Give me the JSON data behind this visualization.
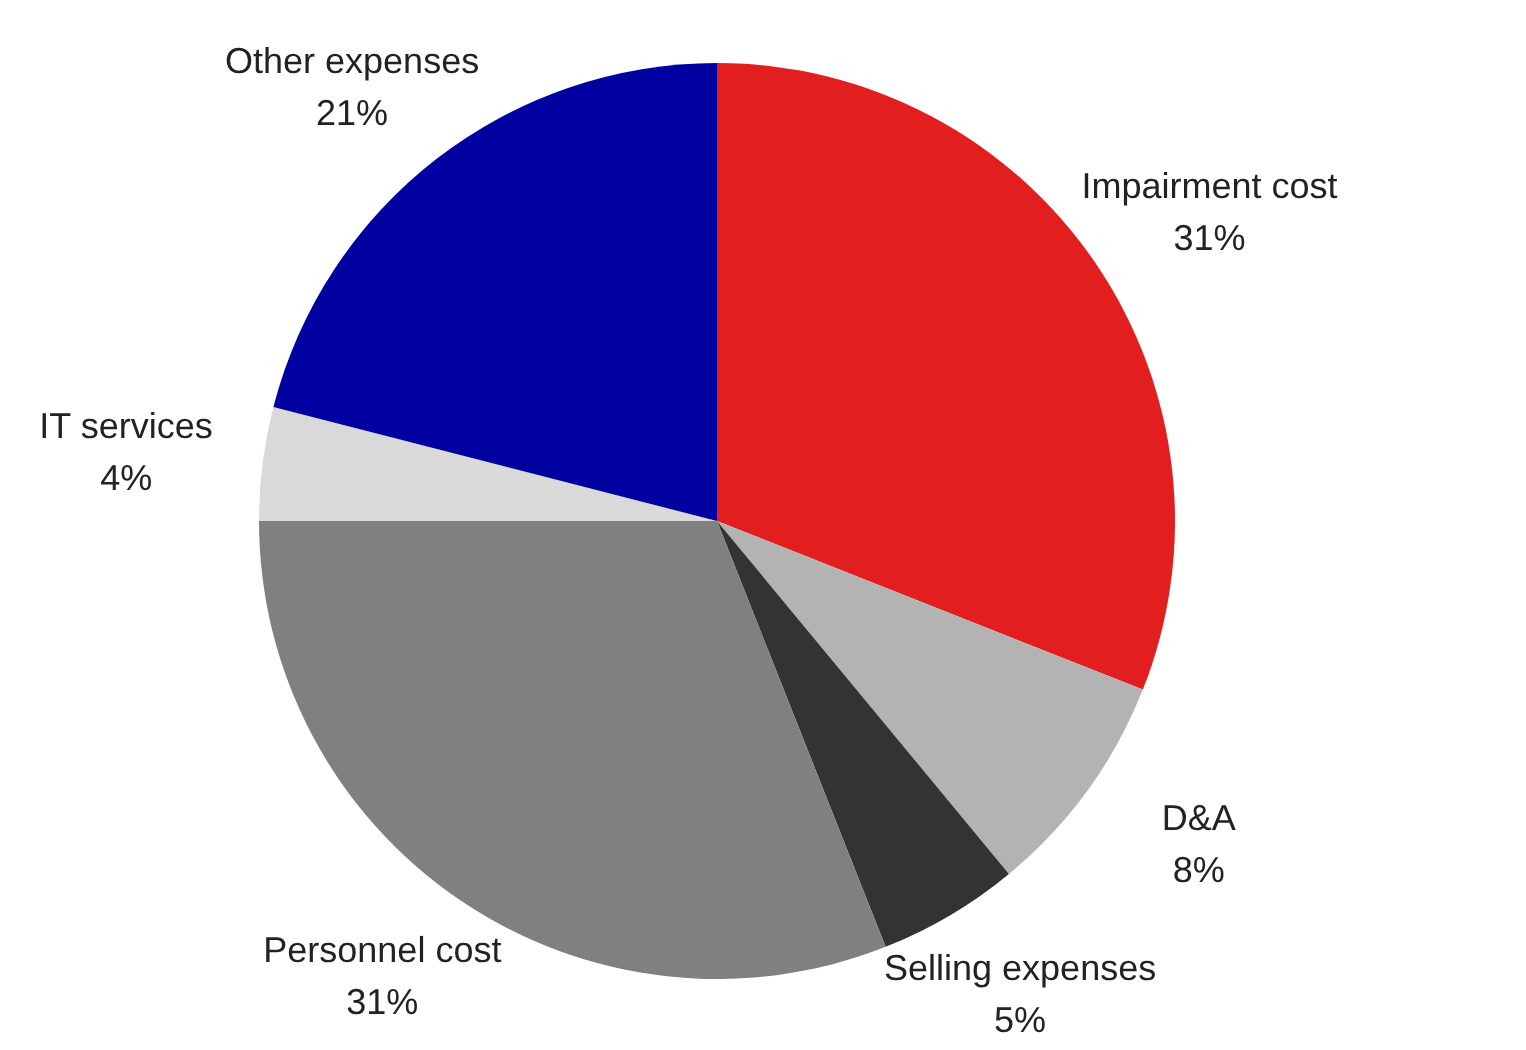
{
  "chart_data": {
    "type": "pie",
    "categories": [
      "Impairment cost",
      "D&A",
      "Selling expenses",
      "Personnel cost",
      "IT services",
      "Other expenses"
    ],
    "values": [
      31,
      8,
      5,
      31,
      4,
      21
    ],
    "value_labels": [
      "31%",
      "8%",
      "5%",
      "31%",
      "4%",
      "21%"
    ],
    "colors": [
      "#e31e1e",
      "#b3b3b3",
      "#333333",
      "#808080",
      "#d9d9d9",
      "#0000a0"
    ]
  }
}
